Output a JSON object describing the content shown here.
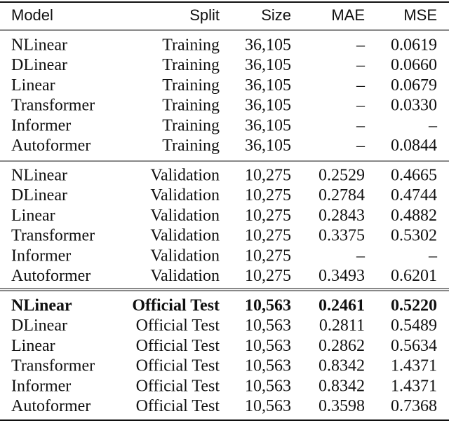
{
  "table": {
    "header": [
      "Model",
      "Split",
      "Size",
      "MAE",
      "MSE"
    ],
    "groups": [
      {
        "rows": [
          {
            "cells": [
              "NLinear",
              "Training",
              "36,105",
              "–",
              "0.0619"
            ]
          },
          {
            "cells": [
              "DLinear",
              "Training",
              "36,105",
              "–",
              "0.0660"
            ]
          },
          {
            "cells": [
              "Linear",
              "Training",
              "36,105",
              "–",
              "0.0679"
            ]
          },
          {
            "cells": [
              "Transformer",
              "Training",
              "36,105",
              "–",
              "0.0330"
            ]
          },
          {
            "cells": [
              "Informer",
              "Training",
              "36,105",
              "–",
              "–"
            ]
          },
          {
            "cells": [
              "Autoformer",
              "Training",
              "36,105",
              "–",
              "0.0844"
            ]
          }
        ]
      },
      {
        "rows": [
          {
            "cells": [
              "NLinear",
              "Validation",
              "10,275",
              "0.2529",
              "0.4665"
            ]
          },
          {
            "cells": [
              "DLinear",
              "Validation",
              "10,275",
              "0.2784",
              "0.4744"
            ]
          },
          {
            "cells": [
              "Linear",
              "Validation",
              "10,275",
              "0.2843",
              "0.4882"
            ]
          },
          {
            "cells": [
              "Transformer",
              "Validation",
              "10,275",
              "0.3375",
              "0.5302"
            ]
          },
          {
            "cells": [
              "Informer",
              "Validation",
              "10,275",
              "–",
              "–"
            ]
          },
          {
            "cells": [
              "Autoformer",
              "Validation",
              "10,275",
              "0.3493",
              "0.6201"
            ]
          }
        ]
      },
      {
        "rows": [
          {
            "cells": [
              "NLinear",
              "Official Test",
              "10,563",
              "0.2461",
              "0.5220"
            ],
            "bold": true
          },
          {
            "cells": [
              "DLinear",
              "Official Test",
              "10,563",
              "0.2811",
              "0.5489"
            ]
          },
          {
            "cells": [
              "Linear",
              "Official Test",
              "10,563",
              "0.2862",
              "0.5634"
            ]
          },
          {
            "cells": [
              "Transformer",
              "Official Test",
              "10,563",
              "0.8342",
              "1.4371"
            ]
          },
          {
            "cells": [
              "Informer",
              "Official Test",
              "10,563",
              "0.8342",
              "1.4371"
            ]
          },
          {
            "cells": [
              "Autoformer",
              "Official Test",
              "10,563",
              "0.3598",
              "0.7368"
            ]
          }
        ]
      }
    ]
  }
}
